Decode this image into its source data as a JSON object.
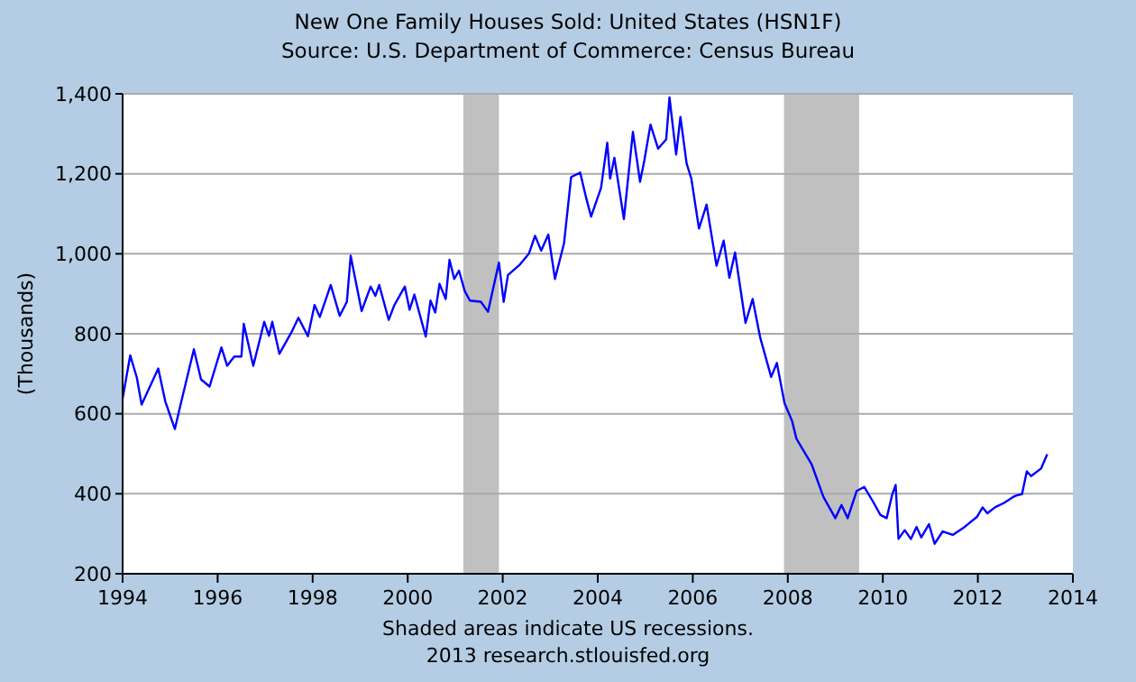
{
  "chart_data": {
    "type": "line",
    "title": "New One Family Houses Sold: United States (HSN1F)",
    "subtitle": "Source: U.S. Department of Commerce: Census Bureau",
    "ylabel": "(Thousands)",
    "annotations": [
      "Shaded areas indicate US recessions.",
      "2013 research.stlouisfed.org"
    ],
    "xlim": [
      1994,
      2014
    ],
    "xticks": [
      1994,
      1996,
      1998,
      2000,
      2002,
      2004,
      2006,
      2008,
      2010,
      2012,
      2014
    ],
    "ylim": [
      200,
      1400
    ],
    "yticks": [
      {
        "value": 200,
        "label": "200"
      },
      {
        "value": 400,
        "label": "400"
      },
      {
        "value": 600,
        "label": "600"
      },
      {
        "value": 800,
        "label": "800"
      },
      {
        "value": 1000,
        "label": "1,000"
      },
      {
        "value": 1200,
        "label": "1,200"
      },
      {
        "value": 1400,
        "label": "1,400"
      }
    ],
    "grid": "y",
    "line_style": "solid",
    "bands": [
      {
        "axis": "x",
        "from": 2001.17,
        "to": 2001.92,
        "color": "#c0c0c0"
      },
      {
        "axis": "x",
        "from": 2007.92,
        "to": 2009.5,
        "color": "#c0c0c0"
      }
    ],
    "series": [
      {
        "color": "#0000ff",
        "x": [
          1994.0,
          1994.16,
          1994.3,
          1994.4,
          1994.75,
          1994.9,
          1995.1,
          1995.22,
          1995.5,
          1995.65,
          1995.83,
          1996.08,
          1996.2,
          1996.35,
          1996.5,
          1996.55,
          1996.75,
          1996.98,
          1997.08,
          1997.15,
          1997.3,
          1997.55,
          1997.7,
          1997.9,
          1998.04,
          1998.15,
          1998.38,
          1998.57,
          1998.72,
          1998.8,
          1999.03,
          1999.22,
          1999.32,
          1999.4,
          1999.6,
          1999.72,
          1999.94,
          2000.04,
          2000.14,
          2000.38,
          2000.48,
          2000.58,
          2000.67,
          2000.8,
          2000.88,
          2000.98,
          2001.08,
          2001.2,
          2001.31,
          2001.54,
          2001.69,
          2001.92,
          2002.02,
          2002.11,
          2002.36,
          2002.55,
          2002.68,
          2002.81,
          2002.96,
          2003.1,
          2003.29,
          2003.44,
          2003.63,
          2003.76,
          2003.86,
          2004.07,
          2004.2,
          2004.26,
          2004.35,
          2004.55,
          2004.74,
          2004.89,
          2004.98,
          2005.11,
          2005.27,
          2005.44,
          2005.51,
          2005.65,
          2005.74,
          2005.87,
          2005.97,
          2006.13,
          2006.29,
          2006.5,
          2006.65,
          2006.77,
          2006.89,
          2007.11,
          2007.26,
          2007.42,
          2007.65,
          2007.77,
          2007.93,
          2008.09,
          2008.18,
          2008.5,
          2008.75,
          2009.0,
          2009.13,
          2009.26,
          2009.45,
          2009.61,
          2009.79,
          2009.95,
          2010.08,
          2010.2,
          2010.27,
          2010.33,
          2010.46,
          2010.59,
          2010.71,
          2010.81,
          2010.97,
          2011.09,
          2011.26,
          2011.47,
          2011.72,
          2011.98,
          2012.1,
          2012.2,
          2012.36,
          2012.55,
          2012.74,
          2012.82,
          2012.93,
          2013.03,
          2013.12,
          2013.33,
          2013.46
        ],
        "values": [
          638,
          746,
          690,
          623,
          713,
          630,
          562,
          623,
          761,
          686,
          668,
          766,
          720,
          743,
          743,
          825,
          720,
          830,
          795,
          830,
          750,
          803,
          840,
          794,
          872,
          842,
          922,
          845,
          880,
          995,
          857,
          918,
          895,
          922,
          835,
          872,
          918,
          860,
          898,
          793,
          883,
          853,
          925,
          887,
          985,
          937,
          958,
          907,
          883,
          880,
          855,
          978,
          880,
          947,
          973,
          1000,
          1045,
          1008,
          1048,
          937,
          1026,
          1192,
          1203,
          1138,
          1093,
          1165,
          1278,
          1188,
          1240,
          1087,
          1305,
          1180,
          1233,
          1323,
          1263,
          1286,
          1391,
          1248,
          1342,
          1226,
          1188,
          1063,
          1123,
          970,
          1033,
          940,
          1003,
          827,
          887,
          790,
          692,
          727,
          627,
          582,
          538,
          474,
          392,
          339,
          372,
          339,
          407,
          417,
          381,
          347,
          339,
          399,
          422,
          287,
          309,
          287,
          317,
          291,
          324,
          275,
          306,
          297,
          317,
          342,
          366,
          351,
          366,
          377,
          392,
          396,
          399,
          456,
          444,
          463,
          499
        ]
      }
    ]
  }
}
